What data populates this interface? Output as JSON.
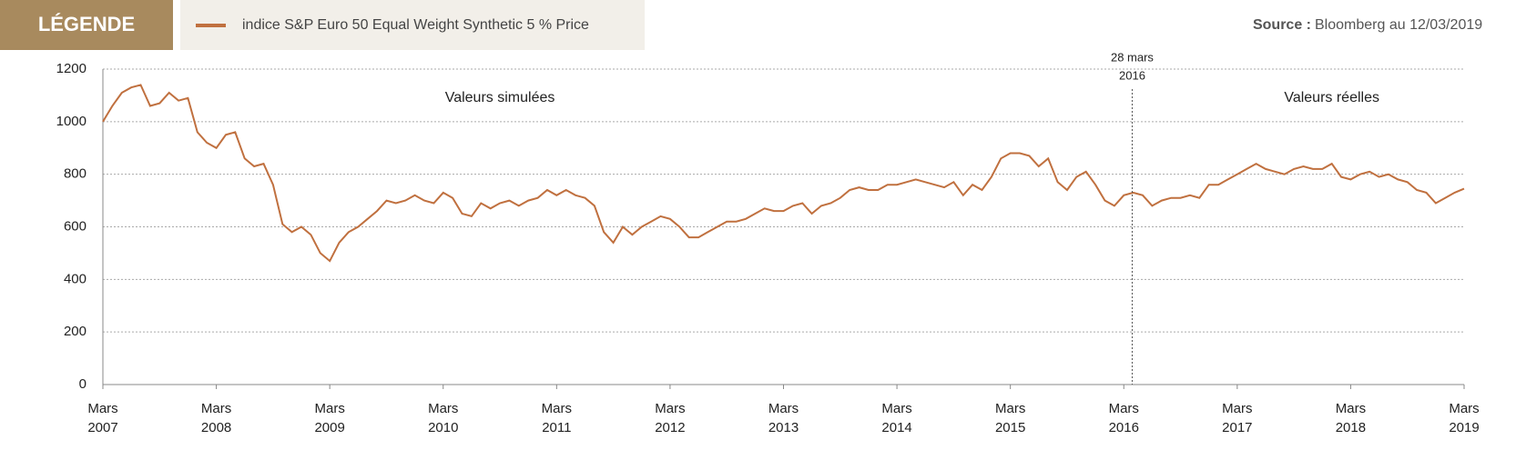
{
  "legend_title": "LÉGENDE",
  "source_label": "Source :",
  "source_text": "Bloomberg au 12/03/2019",
  "chart_data": {
    "type": "line",
    "x": [
      "2007-03",
      "2007-04",
      "2007-05",
      "2007-06",
      "2007-07",
      "2007-08",
      "2007-09",
      "2007-10",
      "2007-11",
      "2007-12",
      "2008-01",
      "2008-02",
      "2008-03",
      "2008-04",
      "2008-05",
      "2008-06",
      "2008-07",
      "2008-08",
      "2008-09",
      "2008-10",
      "2008-11",
      "2008-12",
      "2009-01",
      "2009-02",
      "2009-03",
      "2009-04",
      "2009-05",
      "2009-06",
      "2009-07",
      "2009-08",
      "2009-09",
      "2009-10",
      "2009-11",
      "2009-12",
      "2010-01",
      "2010-02",
      "2010-03",
      "2010-04",
      "2010-05",
      "2010-06",
      "2010-07",
      "2010-08",
      "2010-09",
      "2010-10",
      "2010-11",
      "2010-12",
      "2011-01",
      "2011-02",
      "2011-03",
      "2011-04",
      "2011-05",
      "2011-06",
      "2011-07",
      "2011-08",
      "2011-09",
      "2011-10",
      "2011-11",
      "2011-12",
      "2012-01",
      "2012-02",
      "2012-03",
      "2012-04",
      "2012-05",
      "2012-06",
      "2012-07",
      "2012-08",
      "2012-09",
      "2012-10",
      "2012-11",
      "2012-12",
      "2013-01",
      "2013-02",
      "2013-03",
      "2013-04",
      "2013-05",
      "2013-06",
      "2013-07",
      "2013-08",
      "2013-09",
      "2013-10",
      "2013-11",
      "2013-12",
      "2014-01",
      "2014-02",
      "2014-03",
      "2014-04",
      "2014-05",
      "2014-06",
      "2014-07",
      "2014-08",
      "2014-09",
      "2014-10",
      "2014-11",
      "2014-12",
      "2015-01",
      "2015-02",
      "2015-03",
      "2015-04",
      "2015-05",
      "2015-06",
      "2015-07",
      "2015-08",
      "2015-09",
      "2015-10",
      "2015-11",
      "2015-12",
      "2016-01",
      "2016-02",
      "2016-03",
      "2016-04",
      "2016-05",
      "2016-06",
      "2016-07",
      "2016-08",
      "2016-09",
      "2016-10",
      "2016-11",
      "2016-12",
      "2017-01",
      "2017-02",
      "2017-03",
      "2017-04",
      "2017-05",
      "2017-06",
      "2017-07",
      "2017-08",
      "2017-09",
      "2017-10",
      "2017-11",
      "2017-12",
      "2018-01",
      "2018-02",
      "2018-03",
      "2018-04",
      "2018-05",
      "2018-06",
      "2018-07",
      "2018-08",
      "2018-09",
      "2018-10",
      "2018-11",
      "2018-12",
      "2019-01",
      "2019-02",
      "2019-03"
    ],
    "series": [
      {
        "name": "indice S&P Euro 50 Equal Weight Synthetic 5 % Price",
        "color": "#c0703f",
        "values": [
          1000,
          1060,
          1110,
          1130,
          1140,
          1060,
          1070,
          1110,
          1080,
          1090,
          960,
          920,
          900,
          950,
          960,
          860,
          830,
          840,
          760,
          610,
          580,
          600,
          570,
          500,
          470,
          540,
          580,
          600,
          630,
          660,
          700,
          690,
          700,
          720,
          700,
          690,
          730,
          710,
          650,
          640,
          690,
          670,
          690,
          700,
          680,
          700,
          710,
          740,
          720,
          740,
          720,
          710,
          680,
          580,
          540,
          600,
          570,
          600,
          620,
          640,
          630,
          600,
          560,
          560,
          580,
          600,
          620,
          620,
          630,
          650,
          670,
          660,
          660,
          680,
          690,
          650,
          680,
          690,
          710,
          740,
          750,
          740,
          740,
          760,
          760,
          770,
          780,
          770,
          760,
          750,
          770,
          720,
          760,
          740,
          790,
          860,
          880,
          880,
          870,
          830,
          860,
          770,
          740,
          790,
          810,
          760,
          700,
          680,
          720,
          730,
          720,
          680,
          700,
          710,
          710,
          720,
          710,
          760,
          760,
          780,
          800,
          820,
          840,
          820,
          810,
          800,
          820,
          830,
          820,
          820,
          840,
          790,
          780,
          800,
          810,
          790,
          800,
          780,
          770,
          740,
          730,
          690,
          710,
          730,
          745
        ]
      }
    ],
    "xlim": [
      "2007-03",
      "2019-03"
    ],
    "xticks": [
      {
        "value": "2007-03",
        "label": [
          "Mars",
          "2007"
        ]
      },
      {
        "value": "2008-03",
        "label": [
          "Mars",
          "2008"
        ]
      },
      {
        "value": "2009-03",
        "label": [
          "Mars",
          "2009"
        ]
      },
      {
        "value": "2010-03",
        "label": [
          "Mars",
          "2010"
        ]
      },
      {
        "value": "2011-03",
        "label": [
          "Mars",
          "2011"
        ]
      },
      {
        "value": "2012-03",
        "label": [
          "Mars",
          "2012"
        ]
      },
      {
        "value": "2013-03",
        "label": [
          "Mars",
          "2013"
        ]
      },
      {
        "value": "2014-03",
        "label": [
          "Mars",
          "2014"
        ]
      },
      {
        "value": "2015-03",
        "label": [
          "Mars",
          "2015"
        ]
      },
      {
        "value": "2016-03",
        "label": [
          "Mars",
          "2016"
        ]
      },
      {
        "value": "2017-03",
        "label": [
          "Mars",
          "2017"
        ]
      },
      {
        "value": "2018-03",
        "label": [
          "Mars",
          "2018"
        ]
      },
      {
        "value": "2019-03",
        "label": [
          "Mars",
          "2019"
        ]
      }
    ],
    "ylim": [
      0,
      1200
    ],
    "yticks": [
      0,
      200,
      400,
      600,
      800,
      1000,
      1200
    ],
    "grid": true,
    "annotations": [
      {
        "text": "Valeurs simulées",
        "x": "2010-09",
        "y": 1090
      },
      {
        "text": "Valeurs réelles",
        "x": "2018-01",
        "y": 1090
      }
    ],
    "marker": {
      "text": [
        "28 mars",
        "2016"
      ],
      "x": "2016-03-28"
    }
  }
}
